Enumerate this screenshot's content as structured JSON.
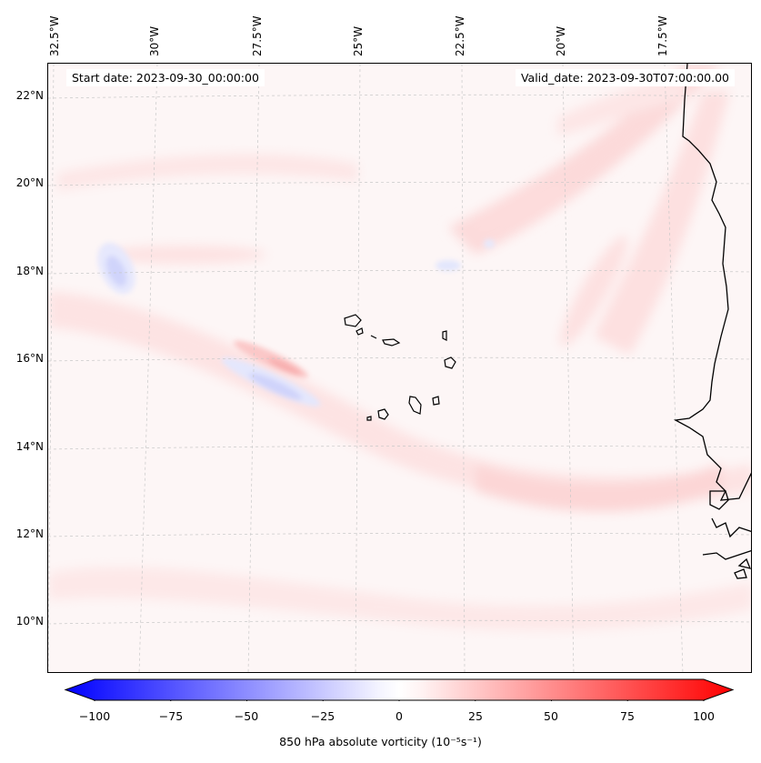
{
  "map": {
    "start_date": "Start date: 2023-09-30_00:00:00",
    "valid_date": "Valid_date: 2023-09-30T07:00:00.00",
    "longitude_labels": [
      "32.5°W",
      "30°W",
      "27.5°W",
      "25°W",
      "22.5°W",
      "20°W",
      "17.5°W"
    ],
    "latitude_labels": [
      "22°N",
      "20°N",
      "18°N",
      "16°N",
      "14°N",
      "12°N",
      "10°N"
    ]
  },
  "colorbar": {
    "ticks": [
      "−100",
      "−75",
      "−50",
      "−25",
      "0",
      "25",
      "50",
      "75",
      "100"
    ],
    "label": "850 hPa absolute vorticity (10⁻⁵s⁻¹)",
    "min": -100,
    "max": 100,
    "colors": {
      "low": "#0000ff",
      "mid": "#ffffff",
      "high": "#ff0000"
    }
  }
}
